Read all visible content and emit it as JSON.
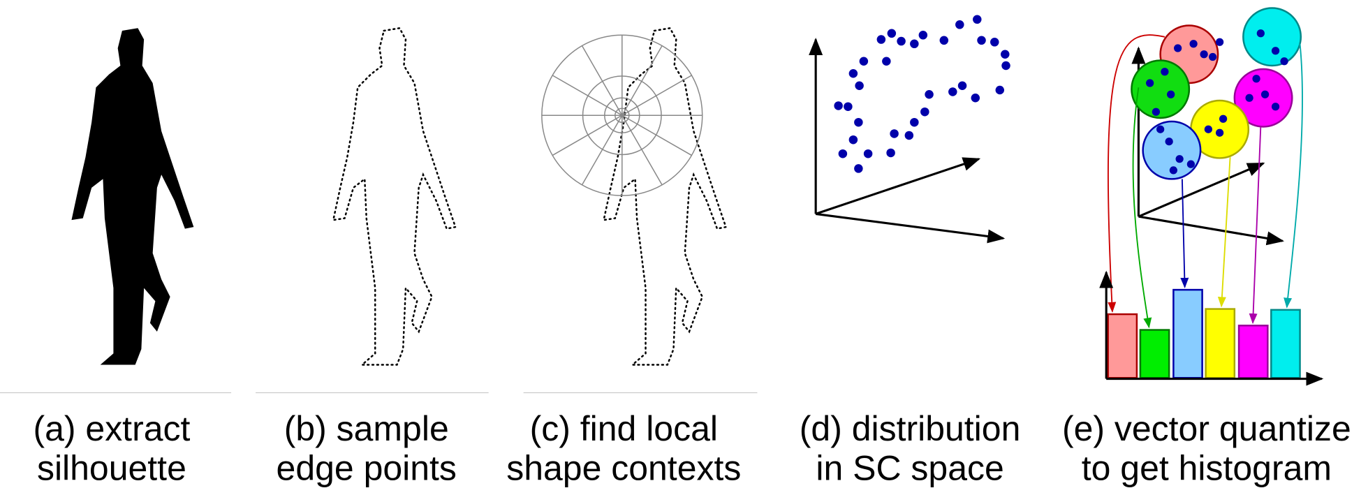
{
  "panels": [
    {
      "caption": [
        "(a) extract",
        "silhouette"
      ]
    },
    {
      "caption": [
        "(b) sample",
        "edge points"
      ]
    },
    {
      "caption": [
        "(c) find local",
        "shape contexts"
      ]
    },
    {
      "caption": [
        "(d) distribution",
        "in SC space"
      ]
    },
    {
      "caption": [
        "(e) vector quantize",
        "to get histogram"
      ]
    }
  ]
}
